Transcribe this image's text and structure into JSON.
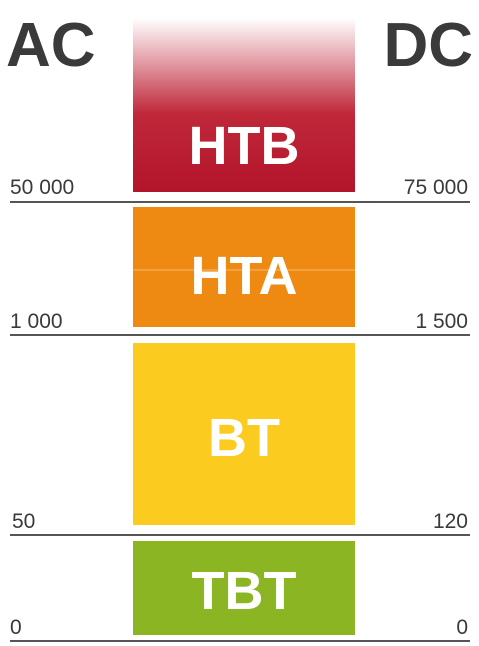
{
  "headers": {
    "left": "AC",
    "right": "DC"
  },
  "bands": [
    {
      "label": "HTB",
      "left": "50 000",
      "right": "75 000"
    },
    {
      "label": "HTA",
      "left": "1 000",
      "right": "1 500"
    },
    {
      "label": "BT",
      "left": "50",
      "right": "120"
    },
    {
      "label": "TBT",
      "left": "0",
      "right": "0"
    }
  ]
}
